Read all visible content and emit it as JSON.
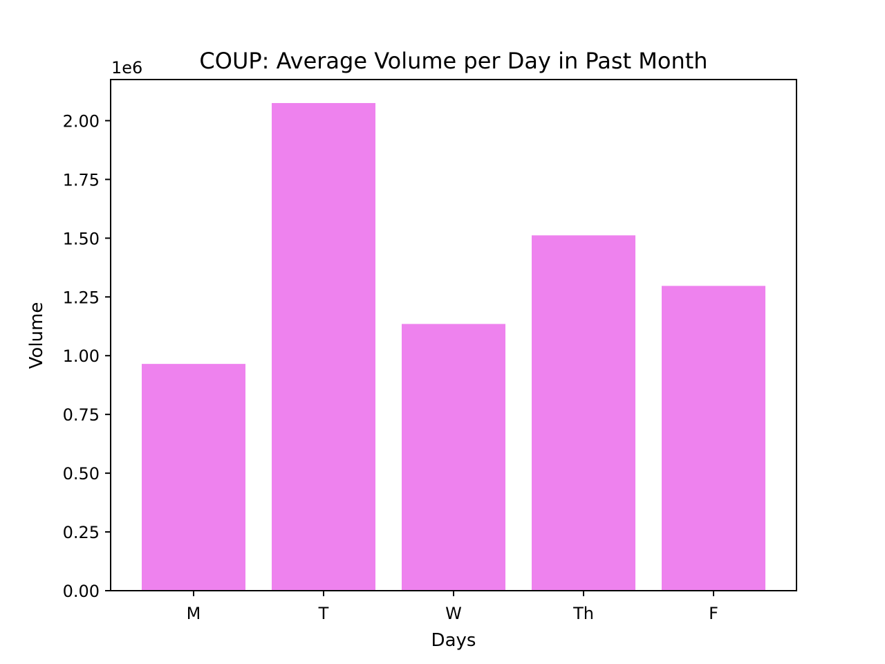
{
  "chart_data": {
    "type": "bar",
    "title": "COUP: Average Volume per Day in Past Month",
    "xlabel": "Days",
    "ylabel": "Volume",
    "y_offset_label": "1e6",
    "categories": [
      "M",
      "T",
      "W",
      "Th",
      "F"
    ],
    "values": [
      965000,
      2075000,
      1135000,
      1512000,
      1297000
    ],
    "ylim": [
      0,
      2175000
    ],
    "yticks": [
      0,
      250000,
      500000,
      750000,
      1000000,
      1250000,
      1500000,
      1750000,
      2000000
    ],
    "ytick_labels": [
      "0.00",
      "0.25",
      "0.50",
      "0.75",
      "1.00",
      "1.25",
      "1.50",
      "1.75",
      "2.00"
    ],
    "bar_color": "#ee82ee",
    "grid": false,
    "legend": "none"
  }
}
